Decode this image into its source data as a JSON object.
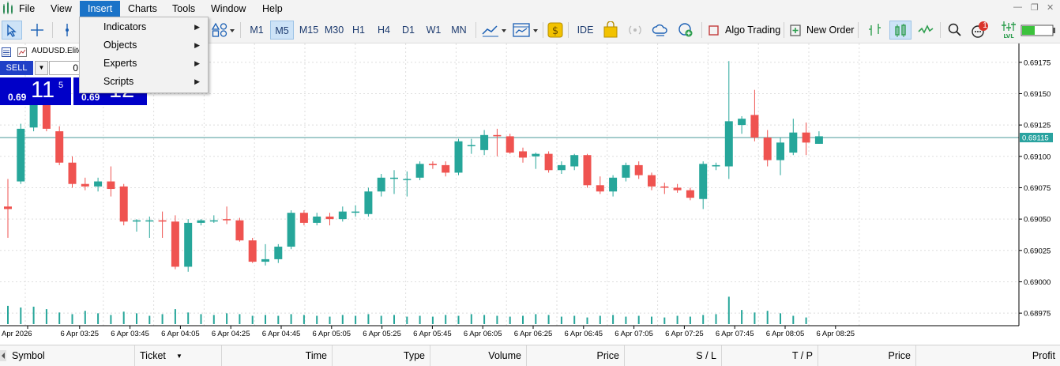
{
  "menubar": {
    "items": [
      "File",
      "View",
      "Insert",
      "Charts",
      "Tools",
      "Window",
      "Help"
    ]
  },
  "toolbar": {
    "timeframes": [
      "M1",
      "M5",
      "M15",
      "M30",
      "H1",
      "H4",
      "D1",
      "W1",
      "MN"
    ],
    "selected_timeframe": "M5",
    "ide_label": "IDE",
    "algo_trading_label": "Algo Trading",
    "new_order_label": "New Order",
    "notification_count": "1",
    "icons": [
      "cursor-icon",
      "crosshair-icon",
      "vertical-line-icon",
      "shapes-icon",
      "chart-type-icon",
      "template-icon",
      "coin-icon",
      "market-bag-icon",
      "signal-icon",
      "cloud-icon",
      "vps-icon",
      "stop-icon",
      "new-order-icon",
      "depth-icon",
      "bar-chart-icon",
      "trade-signals-icon",
      "search-icon",
      "notification-icon",
      "lvl-icon",
      "battery-icon"
    ]
  },
  "insert_menu": {
    "items": [
      "Indicators",
      "Objects",
      "Experts",
      "Scripts"
    ]
  },
  "chart_window": {
    "symbol": "AUDUSD.Elite"
  },
  "one_click": {
    "sell_label": "SELL",
    "volume": "0",
    "sell_small": "0.69",
    "sell_big": "11",
    "sell_sup": "5",
    "buy_small": "0.69",
    "buy_big": "12"
  },
  "chart_data": {
    "type": "candlestick",
    "symbol": "AUDUSD.Elite",
    "timeframe": "M5",
    "current_price": "0.69115",
    "y_ticks": [
      "0.69175",
      "0.69150",
      "0.69125",
      "0.69100",
      "0.69075",
      "0.69050",
      "0.69025",
      "0.69000",
      "0.68975"
    ],
    "ylim": [
      0.68965,
      0.6919
    ],
    "x_ticks": [
      "Apr 2026",
      "6 Apr 03:25",
      "6 Apr 03:45",
      "6 Apr 04:05",
      "6 Apr 04:25",
      "6 Apr 04:45",
      "6 Apr 05:05",
      "6 Apr 05:25",
      "6 Apr 05:45",
      "6 Apr 06:05",
      "6 Apr 06:25",
      "6 Apr 06:45",
      "6 Apr 07:05",
      "6 Apr 07:25",
      "6 Apr 07:45",
      "6 Apr 08:05",
      "6 Apr 08:25"
    ],
    "bull_color": "#26a69a",
    "bear_color": "#ef5350",
    "volume_color": "#26a69a",
    "candles": [
      [
        0.6906,
        0.69082,
        0.69035,
        0.69058
      ],
      [
        0.6908,
        0.69126,
        0.69078,
        0.69122
      ],
      [
        0.69123,
        0.69156,
        0.6912,
        0.69152
      ],
      [
        0.6915,
        0.69155,
        0.6912,
        0.69122
      ],
      [
        0.6912,
        0.69124,
        0.69093,
        0.69095
      ],
      [
        0.69095,
        0.691,
        0.69075,
        0.69078
      ],
      [
        0.69078,
        0.69083,
        0.69073,
        0.69076
      ],
      [
        0.69076,
        0.69083,
        0.69072,
        0.6908
      ],
      [
        0.6908,
        0.69092,
        0.69068,
        0.69074
      ],
      [
        0.69076,
        0.69078,
        0.69045,
        0.69048
      ],
      [
        0.69048,
        0.6905,
        0.6904,
        0.69049
      ],
      [
        0.69049,
        0.69052,
        0.69035,
        0.69049
      ],
      [
        0.69049,
        0.69056,
        0.69035,
        0.69048
      ],
      [
        0.69048,
        0.69053,
        0.6901,
        0.69012
      ],
      [
        0.69012,
        0.6905,
        0.69008,
        0.69047
      ],
      [
        0.69047,
        0.6905,
        0.69045,
        0.69049
      ],
      [
        0.69049,
        0.69053,
        0.69047,
        0.69049
      ],
      [
        0.6905,
        0.6906,
        0.69046,
        0.69049
      ],
      [
        0.69049,
        0.69051,
        0.69032,
        0.69033
      ],
      [
        0.69033,
        0.69035,
        0.69015,
        0.69016
      ],
      [
        0.69016,
        0.6903,
        0.69013,
        0.69018
      ],
      [
        0.69018,
        0.6903,
        0.69015,
        0.69028
      ],
      [
        0.69028,
        0.69057,
        0.69026,
        0.69055
      ],
      [
        0.69055,
        0.69057,
        0.69045,
        0.69047
      ],
      [
        0.69047,
        0.69055,
        0.69045,
        0.69052
      ],
      [
        0.69052,
        0.69055,
        0.69045,
        0.6905
      ],
      [
        0.6905,
        0.6906,
        0.69048,
        0.69056
      ],
      [
        0.69056,
        0.69061,
        0.69052,
        0.69056
      ],
      [
        0.69054,
        0.69075,
        0.69052,
        0.69072
      ],
      [
        0.69072,
        0.69086,
        0.69068,
        0.69083
      ],
      [
        0.69083,
        0.69089,
        0.6907,
        0.69083
      ],
      [
        0.69082,
        0.69088,
        0.69068,
        0.69082
      ],
      [
        0.69083,
        0.69096,
        0.69081,
        0.69094
      ],
      [
        0.69094,
        0.69096,
        0.6909,
        0.69093
      ],
      [
        0.69093,
        0.69096,
        0.69084,
        0.69087
      ],
      [
        0.69087,
        0.69114,
        0.69085,
        0.69112
      ],
      [
        0.69109,
        0.69114,
        0.69102,
        0.69109
      ],
      [
        0.69105,
        0.69121,
        0.69101,
        0.69117
      ],
      [
        0.69117,
        0.69122,
        0.691,
        0.69116
      ],
      [
        0.69116,
        0.69118,
        0.69102,
        0.69103
      ],
      [
        0.69104,
        0.69107,
        0.69095,
        0.69099
      ],
      [
        0.691,
        0.69103,
        0.6909,
        0.69102
      ],
      [
        0.69102,
        0.69104,
        0.69087,
        0.69089
      ],
      [
        0.69089,
        0.69096,
        0.69086,
        0.69093
      ],
      [
        0.69092,
        0.69102,
        0.69089,
        0.69101
      ],
      [
        0.69101,
        0.69102,
        0.69075,
        0.69077
      ],
      [
        0.69077,
        0.69084,
        0.6907,
        0.69072
      ],
      [
        0.69072,
        0.69085,
        0.69068,
        0.69083
      ],
      [
        0.69083,
        0.69095,
        0.6908,
        0.69093
      ],
      [
        0.69093,
        0.69096,
        0.69082,
        0.69085
      ],
      [
        0.69085,
        0.69087,
        0.69073,
        0.69076
      ],
      [
        0.69076,
        0.69079,
        0.6907,
        0.69075
      ],
      [
        0.69075,
        0.69078,
        0.69071,
        0.69073
      ],
      [
        0.69073,
        0.69075,
        0.69065,
        0.69067
      ],
      [
        0.69066,
        0.69096,
        0.69058,
        0.69094
      ],
      [
        0.69092,
        0.69095,
        0.69089,
        0.69093
      ],
      [
        0.69092,
        0.69176,
        0.69082,
        0.69128
      ],
      [
        0.69125,
        0.69132,
        0.69118,
        0.6913
      ],
      [
        0.69133,
        0.69153,
        0.69112,
        0.69115
      ],
      [
        0.69115,
        0.69121,
        0.69092,
        0.69097
      ],
      [
        0.69097,
        0.69115,
        0.69085,
        0.69111
      ],
      [
        0.69103,
        0.6913,
        0.69101,
        0.69119
      ],
      [
        0.69119,
        0.69127,
        0.69101,
        0.69111
      ],
      [
        0.6911,
        0.6912,
        0.6911,
        0.69116
      ]
    ],
    "volumes": [
      22,
      20,
      21,
      18,
      14,
      12,
      16,
      13,
      11,
      15,
      13,
      10,
      12,
      18,
      14,
      12,
      11,
      13,
      12,
      10,
      11,
      10,
      12,
      11,
      10,
      9,
      11,
      10,
      12,
      10,
      11,
      9,
      10,
      9,
      11,
      10,
      12,
      11,
      10,
      9,
      10,
      12,
      11,
      9,
      10,
      8,
      10,
      11,
      9,
      10,
      9,
      8,
      10,
      9,
      11,
      12,
      33,
      17,
      14,
      16,
      13,
      10,
      8,
      0
    ]
  },
  "trade_table": {
    "columns": [
      "Symbol",
      "Ticket",
      "Time",
      "Type",
      "Volume",
      "Price",
      "S / L",
      "T / P",
      "Price",
      "Profit"
    ]
  }
}
